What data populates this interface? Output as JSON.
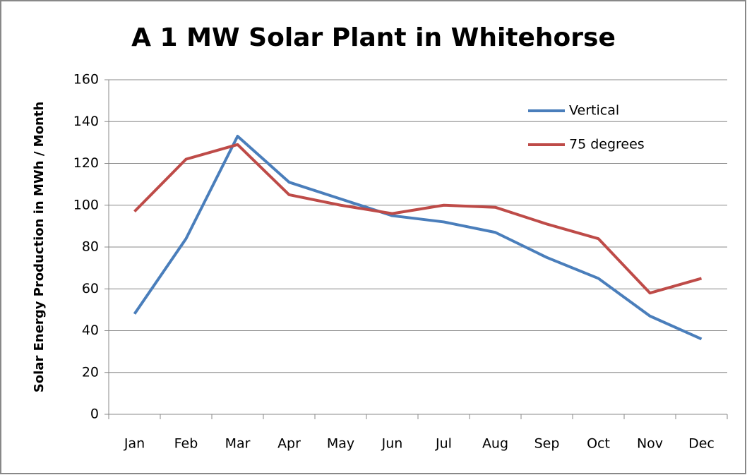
{
  "chart_data": {
    "type": "line",
    "title": "A 1 MW Solar Plant in Whitehorse",
    "y_label": "Solar Energy Production in MWh / Month",
    "categories": [
      "Jan",
      "Feb",
      "Mar",
      "Apr",
      "May",
      "Jun",
      "Jul",
      "Aug",
      "Sep",
      "Oct",
      "Nov",
      "Dec"
    ],
    "series": [
      {
        "name": "Vertical",
        "color": "#4a7ebb",
        "values": [
          48,
          84,
          133,
          111,
          103,
          95,
          92,
          87,
          75,
          65,
          47,
          36
        ]
      },
      {
        "name": "75 degrees",
        "color": "#be4b48",
        "values": [
          97,
          122,
          129,
          105,
          100,
          96,
          100,
          99,
          91,
          84,
          58,
          65
        ]
      }
    ],
    "ylim": [
      0,
      160
    ],
    "yticks": [
      0,
      20,
      40,
      60,
      80,
      100,
      120,
      140,
      160
    ],
    "grid": true,
    "legend": "upper right"
  }
}
